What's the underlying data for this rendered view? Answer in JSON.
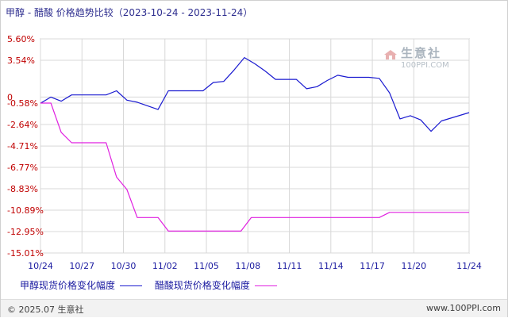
{
  "title": "甲醇 - 醋酸 价格趋势比较（2023-10-24 - 2023-11-24）",
  "watermark": {
    "brand": "生意社",
    "url": "100PPI.COM"
  },
  "footer": {
    "left": "© 2025.07 生意社",
    "right": "www.100PPI.com"
  },
  "colors": {
    "series1": "#1a1ad0",
    "series2": "#e020e0",
    "grid": "#d8d8d8",
    "axis": "#a0a0a0",
    "label": "#c00000",
    "xlabel": "#1a1aa0"
  },
  "chart_data": {
    "type": "line",
    "title": "甲醇 - 醋酸 价格趋势比较（2023-10-24 - 2023-11-24）",
    "y_ticks": [
      "5.60%",
      "3.54%",
      "0",
      "-0.58%",
      "-2.64%",
      "-4.71%",
      "-6.77%",
      "-8.83%",
      "-10.89%",
      "-12.95%",
      "-15.01%"
    ],
    "y_tick_values": [
      5.6,
      3.54,
      0,
      -0.58,
      -2.64,
      -4.71,
      -6.77,
      -8.83,
      -10.89,
      -12.95,
      -15.01
    ],
    "ylim": [
      -15.01,
      5.6
    ],
    "x_ticks": [
      "10/24",
      "10/27",
      "10/30",
      "11/02",
      "11/05",
      "11/08",
      "11/11",
      "11/14",
      "11/17",
      "11/20",
      "11/24"
    ],
    "x_tick_days": [
      0,
      3,
      6,
      9,
      12,
      15,
      18,
      21,
      24,
      27,
      31
    ],
    "grid": true,
    "legend_position": "bottom",
    "series": [
      {
        "name": "甲醇现货价格变化幅度",
        "points": [
          [
            0,
            -0.6
          ],
          [
            0.75,
            0.0
          ],
          [
            1.5,
            -0.4
          ],
          [
            2.25,
            0.2
          ],
          [
            4.75,
            0.2
          ],
          [
            5.5,
            0.6
          ],
          [
            6.25,
            -0.3
          ],
          [
            7,
            -0.5
          ],
          [
            8.5,
            -1.2
          ],
          [
            9.25,
            0.6
          ],
          [
            11.75,
            0.6
          ],
          [
            12.5,
            1.4
          ],
          [
            13.25,
            1.5
          ],
          [
            14,
            2.6
          ],
          [
            14.75,
            3.8
          ],
          [
            15.5,
            3.2
          ],
          [
            16.25,
            2.5
          ],
          [
            17,
            1.7
          ],
          [
            18.5,
            1.7
          ],
          [
            19.25,
            0.8
          ],
          [
            20,
            1.0
          ],
          [
            20.75,
            1.6
          ],
          [
            21.5,
            2.1
          ],
          [
            22.25,
            1.9
          ],
          [
            23.75,
            1.9
          ],
          [
            24.5,
            1.8
          ],
          [
            25.25,
            0.4
          ],
          [
            26,
            -2.1
          ],
          [
            26.75,
            -1.8
          ],
          [
            27.5,
            -2.2
          ],
          [
            28.25,
            -3.3
          ],
          [
            29,
            -2.3
          ],
          [
            31,
            -1.5
          ]
        ]
      },
      {
        "name": "醋酸现货价格变化幅度",
        "points": [
          [
            0,
            -0.58
          ],
          [
            0.75,
            -0.58
          ],
          [
            1.5,
            -3.4
          ],
          [
            2.25,
            -4.4
          ],
          [
            4.75,
            -4.4
          ],
          [
            5.5,
            -7.7
          ],
          [
            6.25,
            -8.9
          ],
          [
            7,
            -11.6
          ],
          [
            8.5,
            -11.6
          ],
          [
            9.25,
            -12.9
          ],
          [
            12.75,
            -12.9
          ],
          [
            14.5,
            -12.9
          ],
          [
            15.25,
            -11.6
          ],
          [
            24.5,
            -11.6
          ],
          [
            25.25,
            -11.1
          ],
          [
            31,
            -11.1
          ]
        ]
      }
    ]
  }
}
